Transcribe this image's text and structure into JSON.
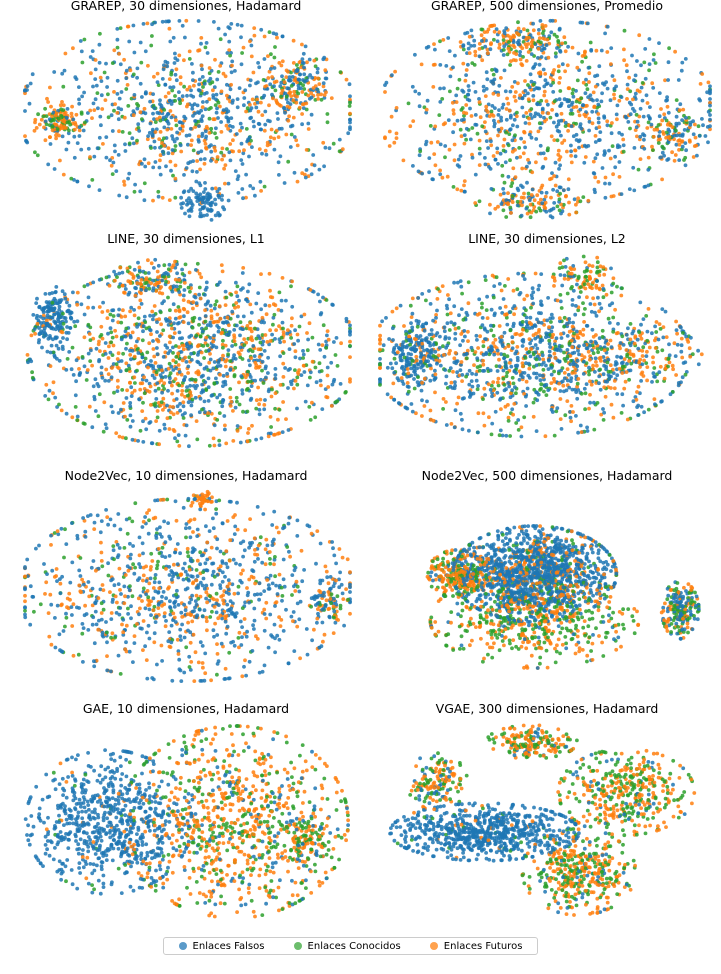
{
  "chart_data": [
    {
      "type": "scatter",
      "title": "GRAREP, 30 dimensiones, Hadamard",
      "xlabel": "",
      "ylabel": "",
      "grid": false,
      "axes_visible": false
    },
    {
      "type": "scatter",
      "title": "GRAREP, 500 dimensiones, Promedio",
      "xlabel": "",
      "ylabel": "",
      "grid": false,
      "axes_visible": false
    },
    {
      "type": "scatter",
      "title": "LINE, 30 dimensiones, L1",
      "xlabel": "",
      "ylabel": "",
      "grid": false,
      "axes_visible": false
    },
    {
      "type": "scatter",
      "title": "LINE, 30 dimensiones, L2",
      "xlabel": "",
      "ylabel": "",
      "grid": false,
      "axes_visible": false
    },
    {
      "type": "scatter",
      "title": "Node2Vec, 10 dimensiones, Hadamard",
      "xlabel": "",
      "ylabel": "",
      "grid": false,
      "axes_visible": false
    },
    {
      "type": "scatter",
      "title": "Node2Vec, 500 dimensiones, Hadamard",
      "xlabel": "",
      "ylabel": "",
      "grid": false,
      "axes_visible": false
    },
    {
      "type": "scatter",
      "title": "GAE, 10 dimensiones, Hadamard",
      "xlabel": "",
      "ylabel": "",
      "grid": false,
      "axes_visible": false
    },
    {
      "type": "scatter",
      "title": "VGAE, 300 dimensiones, Hadamard",
      "xlabel": "",
      "ylabel": "",
      "grid": false,
      "axes_visible": false
    }
  ],
  "legend": {
    "placement": "bottom-center",
    "entries": [
      {
        "label": "Enlaces Falsos",
        "color": "#1f77b4"
      },
      {
        "label": "Enlaces Conocidos",
        "color": "#2ca02c"
      },
      {
        "label": "Enlaces Futuros",
        "color": "#ff7f0e"
      }
    ]
  },
  "colors": {
    "falsos": "#1f77b4",
    "conocidos": "#2ca02c",
    "futuros": "#ff7f0e"
  }
}
